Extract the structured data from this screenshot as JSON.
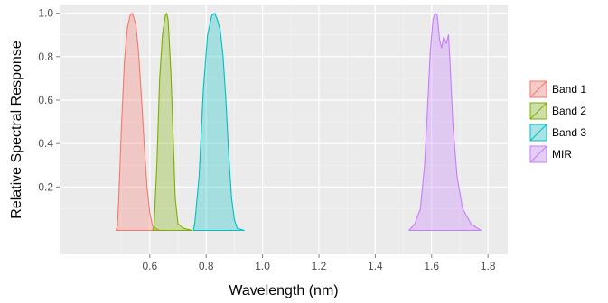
{
  "chart_data": {
    "type": "area",
    "xlabel": "Wavelength (nm)",
    "ylabel": "Relative Spectral Response",
    "xlim": [
      0.28,
      1.87
    ],
    "ylim": [
      -0.11,
      1.04
    ],
    "xticks": [
      0.6,
      0.8,
      1.0,
      1.2,
      1.4,
      1.6,
      1.8
    ],
    "xtick_labels": [
      "0.6",
      "0.8",
      "1.0",
      "1.2",
      "1.4",
      "1.6",
      "1.8"
    ],
    "yticks": [
      0.2,
      0.4,
      0.6,
      0.8,
      1.0
    ],
    "ytick_labels": [
      "0.2",
      "0.4",
      "0.6",
      "0.8",
      "1.0"
    ],
    "grid": true,
    "legend_position": "right",
    "series": [
      {
        "name": "Band 1",
        "color": "#F8766D",
        "points": [
          [
            0.48,
            0.0
          ],
          [
            0.485,
            0.02
          ],
          [
            0.49,
            0.15
          ],
          [
            0.5,
            0.5
          ],
          [
            0.51,
            0.78
          ],
          [
            0.52,
            0.93
          ],
          [
            0.53,
            0.99
          ],
          [
            0.538,
            1.0
          ],
          [
            0.55,
            0.95
          ],
          [
            0.56,
            0.82
          ],
          [
            0.57,
            0.62
          ],
          [
            0.58,
            0.4
          ],
          [
            0.59,
            0.2
          ],
          [
            0.6,
            0.08
          ],
          [
            0.61,
            0.02
          ],
          [
            0.62,
            0.01
          ],
          [
            0.635,
            0.0
          ]
        ]
      },
      {
        "name": "Band 2",
        "color": "#7CAE00",
        "points": [
          [
            0.61,
            0.0
          ],
          [
            0.615,
            0.02
          ],
          [
            0.625,
            0.3
          ],
          [
            0.635,
            0.7
          ],
          [
            0.645,
            0.9
          ],
          [
            0.655,
            0.99
          ],
          [
            0.66,
            1.0
          ],
          [
            0.665,
            0.97
          ],
          [
            0.675,
            0.72
          ],
          [
            0.685,
            0.35
          ],
          [
            0.69,
            0.15
          ],
          [
            0.7,
            0.03
          ],
          [
            0.72,
            0.01
          ],
          [
            0.75,
            0.0
          ]
        ]
      },
      {
        "name": "Band 3",
        "color": "#00BFC4",
        "points": [
          [
            0.755,
            0.0
          ],
          [
            0.76,
            0.04
          ],
          [
            0.775,
            0.25
          ],
          [
            0.79,
            0.65
          ],
          [
            0.805,
            0.9
          ],
          [
            0.82,
            0.99
          ],
          [
            0.83,
            1.0
          ],
          [
            0.84,
            0.97
          ],
          [
            0.85,
            0.92
          ],
          [
            0.86,
            0.8
          ],
          [
            0.87,
            0.6
          ],
          [
            0.88,
            0.35
          ],
          [
            0.89,
            0.15
          ],
          [
            0.9,
            0.05
          ],
          [
            0.91,
            0.01
          ],
          [
            0.935,
            0.0
          ]
        ]
      },
      {
        "name": "MIR",
        "color": "#C77CFF",
        "points": [
          [
            1.52,
            0.0
          ],
          [
            1.54,
            0.03
          ],
          [
            1.56,
            0.1
          ],
          [
            1.575,
            0.3
          ],
          [
            1.585,
            0.55
          ],
          [
            1.595,
            0.82
          ],
          [
            1.605,
            0.97
          ],
          [
            1.612,
            1.0
          ],
          [
            1.62,
            0.99
          ],
          [
            1.628,
            0.88
          ],
          [
            1.635,
            0.84
          ],
          [
            1.643,
            0.89
          ],
          [
            1.652,
            0.86
          ],
          [
            1.66,
            0.9
          ],
          [
            1.665,
            0.78
          ],
          [
            1.675,
            0.5
          ],
          [
            1.69,
            0.25
          ],
          [
            1.71,
            0.1
          ],
          [
            1.74,
            0.03
          ],
          [
            1.775,
            0.0
          ]
        ]
      }
    ]
  }
}
